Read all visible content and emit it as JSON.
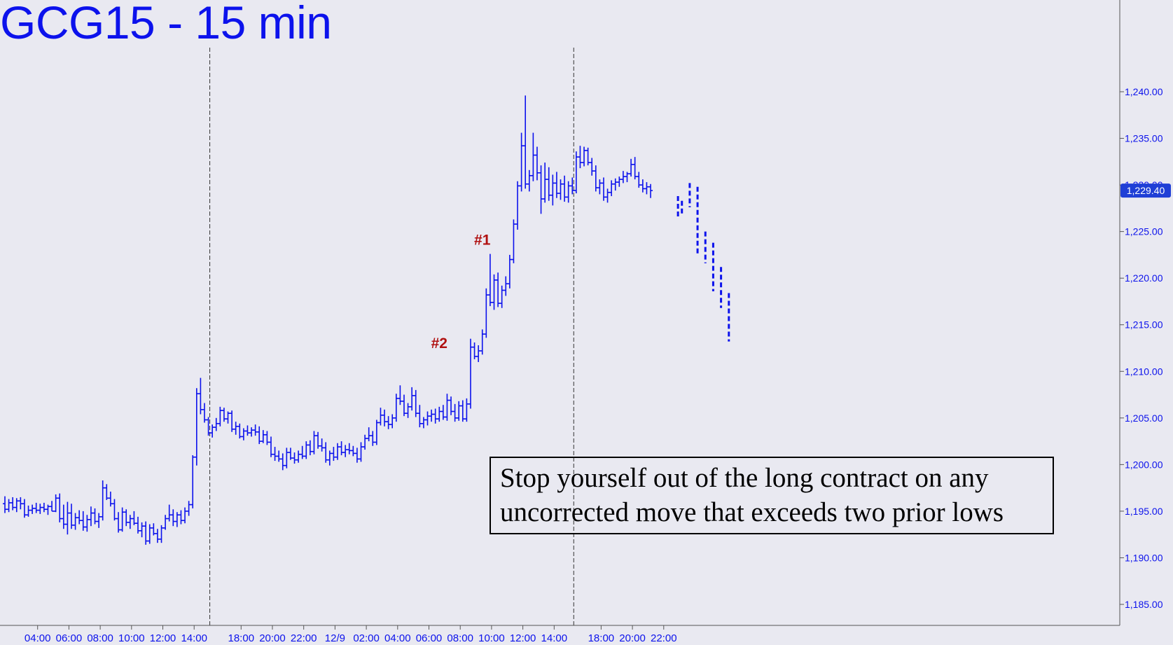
{
  "title": "GCG15 - 15 min",
  "colors": {
    "background": "#e9e9f1",
    "bars": "#0c12ec",
    "title": "#0c12ec",
    "annotation": "#b01010",
    "last_price_badge": "#1f3fd6"
  },
  "callout": {
    "line1": "Stop yourself out of the long contract on any",
    "line2": "uncorrected move that exceeds two prior lows"
  },
  "chart_data": {
    "type": "ohlc-bar",
    "title": "GCG15 - 15 min",
    "xlabel": "",
    "ylabel": "",
    "ylim": [
      1182,
      1249
    ],
    "grid": false,
    "y_axis_side": "right",
    "y_ticks": [
      "1,185.00",
      "1,190.00",
      "1,195.00",
      "1,200.00",
      "1,205.00",
      "1,210.00",
      "1,215.00",
      "1,220.00",
      "1,225.00",
      "1,230.00",
      "1,235.00",
      "1,240.00"
    ],
    "y_tick_values": [
      1185,
      1190,
      1195,
      1200,
      1205,
      1210,
      1215,
      1220,
      1225,
      1230,
      1235,
      1240
    ],
    "x_ticks": [
      "04:00",
      "06:00",
      "08:00",
      "10:00",
      "12:00",
      "14:00",
      "18:00",
      "20:00",
      "22:00",
      "12/9",
      "02:00",
      "04:00",
      "06:00",
      "08:00",
      "10:00",
      "12:00",
      "14:00",
      "18:00",
      "20:00",
      "22:00"
    ],
    "x_tick_bar_index": [
      8,
      16,
      24,
      32,
      40,
      48,
      60,
      68,
      76,
      84,
      92,
      100,
      108,
      116,
      124,
      132,
      140,
      152,
      160,
      168
    ],
    "session_breaks_bar_index": [
      52,
      145
    ],
    "last_price": 1229.4,
    "last_price_label": "1,229.40",
    "annotations": [
      {
        "label": "#1",
        "bar_index": 122,
        "price": 1224.2
      },
      {
        "label": "#2",
        "bar_index": 111,
        "price": 1213.1
      }
    ],
    "bars": [
      [
        1195.8,
        1196.6,
        1194.8,
        1195.2
      ],
      [
        1195.2,
        1196.3,
        1194.9,
        1195.9
      ],
      [
        1195.9,
        1196.5,
        1195.1,
        1195.4
      ],
      [
        1195.4,
        1196.4,
        1194.9,
        1196.1
      ],
      [
        1196.1,
        1196.5,
        1195.2,
        1195.8
      ],
      [
        1195.8,
        1196.3,
        1194.3,
        1194.6
      ],
      [
        1194.6,
        1195.6,
        1194.4,
        1195.1
      ],
      [
        1195.1,
        1195.7,
        1194.7,
        1195.3
      ],
      [
        1195.3,
        1195.9,
        1194.8,
        1195.1
      ],
      [
        1195.1,
        1195.8,
        1194.7,
        1195.4
      ],
      [
        1195.4,
        1195.9,
        1194.9,
        1195.2
      ],
      [
        1195.2,
        1195.7,
        1194.6,
        1195.5
      ],
      [
        1195.5,
        1196.1,
        1195.0,
        1195.0
      ],
      [
        1195.0,
        1196.8,
        1194.9,
        1196.4
      ],
      [
        1196.4,
        1196.9,
        1193.8,
        1194.2
      ],
      [
        1194.2,
        1195.7,
        1193.1,
        1193.6
      ],
      [
        1193.6,
        1196.0,
        1192.5,
        1194.8
      ],
      [
        1194.8,
        1195.8,
        1193.1,
        1193.5
      ],
      [
        1193.5,
        1194.8,
        1193.0,
        1194.3
      ],
      [
        1194.3,
        1195.1,
        1193.6,
        1194.0
      ],
      [
        1194.0,
        1195.0,
        1192.9,
        1193.3
      ],
      [
        1193.3,
        1194.6,
        1192.8,
        1194.1
      ],
      [
        1194.1,
        1195.5,
        1193.4,
        1194.8
      ],
      [
        1194.8,
        1195.3,
        1193.6,
        1193.9
      ],
      [
        1193.9,
        1194.8,
        1193.2,
        1194.4
      ],
      [
        1194.4,
        1198.3,
        1194.0,
        1197.5
      ],
      [
        1197.5,
        1197.9,
        1196.2,
        1196.4
      ],
      [
        1196.4,
        1197.1,
        1195.5,
        1195.8
      ],
      [
        1195.8,
        1196.3,
        1194.0,
        1194.2
      ],
      [
        1194.2,
        1194.9,
        1192.7,
        1193.0
      ],
      [
        1193.0,
        1195.4,
        1192.8,
        1194.9
      ],
      [
        1194.9,
        1195.2,
        1193.4,
        1193.8
      ],
      [
        1193.8,
        1194.6,
        1193.1,
        1194.2
      ],
      [
        1194.2,
        1195.0,
        1193.5,
        1193.7
      ],
      [
        1193.7,
        1194.4,
        1192.6,
        1192.9
      ],
      [
        1192.9,
        1193.8,
        1192.2,
        1193.4
      ],
      [
        1193.4,
        1193.9,
        1191.4,
        1191.8
      ],
      [
        1191.8,
        1193.6,
        1191.5,
        1193.2
      ],
      [
        1193.2,
        1193.7,
        1192.4,
        1192.6
      ],
      [
        1192.6,
        1193.1,
        1191.6,
        1192.0
      ],
      [
        1192.0,
        1193.5,
        1191.6,
        1193.2
      ],
      [
        1193.2,
        1194.6,
        1193.0,
        1194.2
      ],
      [
        1194.2,
        1195.7,
        1193.9,
        1194.6
      ],
      [
        1194.6,
        1195.2,
        1193.4,
        1193.9
      ],
      [
        1193.9,
        1194.9,
        1193.3,
        1194.6
      ],
      [
        1194.6,
        1195.1,
        1193.6,
        1194.0
      ],
      [
        1194.0,
        1195.4,
        1193.7,
        1195.0
      ],
      [
        1195.0,
        1196.1,
        1194.5,
        1195.7
      ],
      [
        1195.7,
        1201.0,
        1195.3,
        1200.8
      ],
      [
        1200.8,
        1208.2,
        1199.9,
        1207.6
      ],
      [
        1207.6,
        1209.3,
        1205.4,
        1205.9
      ],
      [
        1205.9,
        1206.6,
        1204.5,
        1204.8
      ],
      [
        1204.8,
        1205.1,
        1203.1,
        1203.4
      ],
      [
        1203.4,
        1204.3,
        1202.9,
        1204.0
      ],
      [
        1204.0,
        1205.0,
        1203.6,
        1204.4
      ],
      [
        1204.4,
        1206.2,
        1204.1,
        1205.8
      ],
      [
        1205.8,
        1206.1,
        1204.6,
        1204.9
      ],
      [
        1204.9,
        1205.7,
        1204.4,
        1205.5
      ],
      [
        1205.5,
        1205.8,
        1203.5,
        1203.8
      ],
      [
        1203.8,
        1204.6,
        1203.2,
        1204.1
      ],
      [
        1204.1,
        1204.4,
        1202.8,
        1203.0
      ],
      [
        1203.0,
        1203.9,
        1202.6,
        1203.6
      ],
      [
        1203.6,
        1204.2,
        1203.1,
        1203.4
      ],
      [
        1203.4,
        1204.0,
        1203.0,
        1203.7
      ],
      [
        1203.7,
        1204.3,
        1203.1,
        1203.5
      ],
      [
        1203.5,
        1204.1,
        1202.2,
        1202.5
      ],
      [
        1202.5,
        1203.7,
        1202.3,
        1203.2
      ],
      [
        1203.2,
        1203.6,
        1202.1,
        1202.4
      ],
      [
        1202.4,
        1203.0,
        1200.8,
        1201.1
      ],
      [
        1201.1,
        1201.9,
        1200.4,
        1200.9
      ],
      [
        1200.9,
        1201.5,
        1200.3,
        1200.6
      ],
      [
        1200.6,
        1201.2,
        1199.4,
        1199.9
      ],
      [
        1199.9,
        1201.8,
        1199.6,
        1201.3
      ],
      [
        1201.3,
        1201.8,
        1200.5,
        1200.7
      ],
      [
        1200.7,
        1201.3,
        1200.1,
        1200.5
      ],
      [
        1200.5,
        1201.5,
        1200.2,
        1201.1
      ],
      [
        1201.1,
        1202.0,
        1200.6,
        1200.9
      ],
      [
        1200.9,
        1202.5,
        1200.6,
        1202.1
      ],
      [
        1202.1,
        1202.6,
        1201.0,
        1201.4
      ],
      [
        1201.4,
        1203.6,
        1201.1,
        1203.1
      ],
      [
        1203.1,
        1203.5,
        1201.7,
        1202.0
      ],
      [
        1202.0,
        1202.8,
        1201.4,
        1201.8
      ],
      [
        1201.8,
        1202.4,
        1200.2,
        1200.5
      ],
      [
        1200.5,
        1201.5,
        1199.9,
        1201.2
      ],
      [
        1201.2,
        1201.9,
        1200.4,
        1200.8
      ],
      [
        1200.8,
        1202.3,
        1200.5,
        1201.9
      ],
      [
        1201.9,
        1202.5,
        1201.0,
        1201.3
      ],
      [
        1201.3,
        1202.1,
        1200.8,
        1201.6
      ],
      [
        1201.6,
        1202.3,
        1201.1,
        1201.5
      ],
      [
        1201.5,
        1202.0,
        1200.9,
        1201.2
      ],
      [
        1201.2,
        1201.8,
        1200.2,
        1200.6
      ],
      [
        1200.6,
        1202.4,
        1200.3,
        1201.9
      ],
      [
        1201.9,
        1203.2,
        1201.6,
        1202.8
      ],
      [
        1202.8,
        1204.0,
        1202.5,
        1203.1
      ],
      [
        1203.1,
        1203.6,
        1202.0,
        1202.4
      ],
      [
        1202.4,
        1204.8,
        1202.1,
        1204.5
      ],
      [
        1204.5,
        1206.1,
        1204.2,
        1205.3
      ],
      [
        1205.3,
        1205.9,
        1204.1,
        1204.6
      ],
      [
        1204.6,
        1205.2,
        1203.8,
        1204.3
      ],
      [
        1204.3,
        1205.4,
        1203.9,
        1205.0
      ],
      [
        1205.0,
        1207.6,
        1204.6,
        1207.1
      ],
      [
        1207.1,
        1208.5,
        1206.4,
        1206.8
      ],
      [
        1206.8,
        1207.5,
        1205.2,
        1205.5
      ],
      [
        1205.5,
        1206.6,
        1205.0,
        1206.2
      ],
      [
        1206.2,
        1208.3,
        1205.8,
        1207.4
      ],
      [
        1207.4,
        1208.0,
        1205.1,
        1205.5
      ],
      [
        1205.5,
        1206.4,
        1204.0,
        1204.4
      ],
      [
        1204.4,
        1205.1,
        1203.9,
        1204.8
      ],
      [
        1204.8,
        1205.7,
        1204.2,
        1205.2
      ],
      [
        1205.2,
        1205.9,
        1204.6,
        1205.4
      ],
      [
        1205.4,
        1206.0,
        1204.4,
        1204.9
      ],
      [
        1204.9,
        1206.2,
        1204.6,
        1205.7
      ],
      [
        1205.7,
        1206.4,
        1204.8,
        1205.1
      ],
      [
        1205.1,
        1207.6,
        1204.7,
        1206.9
      ],
      [
        1206.9,
        1207.3,
        1205.3,
        1205.7
      ],
      [
        1205.7,
        1206.5,
        1204.6,
        1205.0
      ],
      [
        1205.0,
        1206.8,
        1204.7,
        1206.3
      ],
      [
        1206.3,
        1206.9,
        1204.6,
        1204.9
      ],
      [
        1204.9,
        1207.1,
        1204.6,
        1206.5
      ],
      [
        1206.5,
        1213.5,
        1206.0,
        1212.6
      ],
      [
        1212.6,
        1213.1,
        1211.3,
        1211.6
      ],
      [
        1211.6,
        1212.8,
        1211.0,
        1212.2
      ],
      [
        1212.2,
        1214.5,
        1211.8,
        1214.0
      ],
      [
        1214.0,
        1218.9,
        1213.6,
        1218.2
      ],
      [
        1218.2,
        1222.6,
        1217.0,
        1217.4
      ],
      [
        1217.4,
        1220.4,
        1216.6,
        1219.8
      ],
      [
        1219.8,
        1220.6,
        1216.9,
        1217.3
      ],
      [
        1217.3,
        1219.2,
        1216.8,
        1218.7
      ],
      [
        1218.7,
        1220.2,
        1218.1,
        1219.4
      ],
      [
        1219.4,
        1222.5,
        1218.9,
        1222.0
      ],
      [
        1222.0,
        1226.3,
        1221.6,
        1225.8
      ],
      [
        1225.8,
        1230.4,
        1225.2,
        1229.9
      ],
      [
        1229.9,
        1235.6,
        1229.3,
        1234.2
      ],
      [
        1234.2,
        1239.6,
        1229.6,
        1230.1
      ],
      [
        1230.1,
        1231.6,
        1229.3,
        1231.0
      ],
      [
        1231.0,
        1235.6,
        1230.4,
        1233.2
      ],
      [
        1233.2,
        1234.1,
        1230.5,
        1231.3
      ],
      [
        1231.3,
        1232.1,
        1226.9,
        1228.5
      ],
      [
        1228.5,
        1232.4,
        1228.1,
        1230.6
      ],
      [
        1230.6,
        1231.9,
        1228.3,
        1228.9
      ],
      [
        1228.9,
        1231.1,
        1227.8,
        1230.2
      ],
      [
        1230.2,
        1231.4,
        1228.6,
        1229.1
      ],
      [
        1229.1,
        1230.6,
        1228.4,
        1230.1
      ],
      [
        1230.1,
        1231.0,
        1228.2,
        1228.7
      ],
      [
        1228.7,
        1230.4,
        1228.1,
        1229.9
      ],
      [
        1229.9,
        1230.8,
        1229.0,
        1229.4
      ],
      [
        1229.4,
        1233.6,
        1229.1,
        1233.0
      ],
      [
        1233.0,
        1234.2,
        1231.8,
        1232.4
      ],
      [
        1232.4,
        1234.1,
        1232.0,
        1233.7
      ],
      [
        1233.7,
        1234.0,
        1232.1,
        1232.4
      ],
      [
        1232.4,
        1232.9,
        1231.0,
        1231.5
      ],
      [
        1231.5,
        1232.1,
        1229.3,
        1229.7
      ],
      [
        1229.7,
        1230.6,
        1229.0,
        1230.2
      ],
      [
        1230.2,
        1230.8,
        1228.3,
        1228.7
      ],
      [
        1228.7,
        1229.6,
        1228.1,
        1229.2
      ],
      [
        1229.2,
        1230.5,
        1228.8,
        1230.1
      ],
      [
        1230.1,
        1230.7,
        1229.4,
        1230.3
      ],
      [
        1230.3,
        1230.9,
        1229.8,
        1230.6
      ],
      [
        1230.6,
        1231.5,
        1230.2,
        1230.9
      ],
      [
        1230.9,
        1231.4,
        1230.3,
        1231.2
      ],
      [
        1231.2,
        1232.8,
        1230.9,
        1232.2
      ],
      [
        1232.2,
        1233.0,
        1230.6,
        1230.9
      ],
      [
        1230.9,
        1231.4,
        1229.7,
        1230.0
      ],
      [
        1230.0,
        1230.6,
        1229.2,
        1229.6
      ],
      [
        1229.6,
        1230.3,
        1229.0,
        1229.8
      ],
      [
        1229.8,
        1230.1,
        1228.6,
        1229.4
      ]
    ],
    "projected_bars": [
      {
        "bar_index": 172,
        "high": 1228.8,
        "low": 1226.6
      },
      {
        "bar_index": 173,
        "high": 1228.3,
        "low": 1226.9
      },
      {
        "bar_index": 175,
        "high": 1230.2,
        "low": 1227.6
      },
      {
        "bar_index": 177,
        "high": 1229.8,
        "low": 1222.4
      },
      {
        "bar_index": 179,
        "high": 1225.0,
        "low": 1221.6
      },
      {
        "bar_index": 181,
        "high": 1223.8,
        "low": 1218.6
      },
      {
        "bar_index": 183,
        "high": 1221.2,
        "low": 1216.8
      },
      {
        "bar_index": 185,
        "high": 1218.4,
        "low": 1213.2
      }
    ]
  }
}
